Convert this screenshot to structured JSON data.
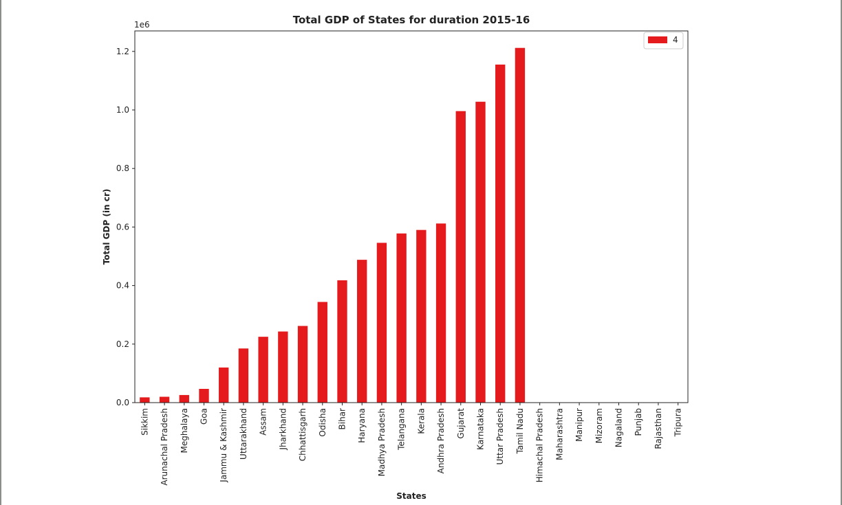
{
  "chart_data": {
    "type": "bar",
    "title": "Total GDP of States for duration 2015-16",
    "xlabel": "States",
    "ylabel": "Total GDP (in cr)",
    "y_scale_note": "1e6",
    "ylim": [
      0,
      1270000
    ],
    "yticks": [
      0,
      200000,
      400000,
      600000,
      800000,
      1000000,
      1200000
    ],
    "ytick_labels": [
      "0.0",
      "0.2",
      "0.4",
      "0.6",
      "0.8",
      "1.0",
      "1.2"
    ],
    "legend": {
      "placement": "top-right",
      "entries": [
        "4"
      ]
    },
    "grid": false,
    "colors": {
      "bar": "#e41a1c",
      "axis": "#222222"
    },
    "categories": [
      "Sikkim",
      "Arunachal Pradesh",
      "Meghalaya",
      "Goa",
      "Jammu & Kashmir",
      "Uttarakhand",
      "Assam",
      "Jharkhand",
      "Chhattisgarh",
      "Odisha",
      "Bihar",
      "Haryana",
      "Madhya Pradesh",
      "Telangana",
      "Kerala",
      "Andhra Pradesh",
      "Gujarat",
      "Karnataka",
      "Uttar Pradesh",
      "Tamil Nadu",
      "Himachal Pradesh",
      "Maharashtra",
      "Manipur",
      "Mizoram",
      "Nagaland",
      "Punjab",
      "Rajasthan",
      "Tripura"
    ],
    "series": [
      {
        "name": "4",
        "values": [
          18000,
          20000,
          26000,
          47000,
          120000,
          185000,
          225000,
          243000,
          262000,
          344000,
          418000,
          488000,
          546000,
          578000,
          590000,
          612000,
          996000,
          1028000,
          1155000,
          1212000,
          0,
          0,
          0,
          0,
          0,
          0,
          0,
          0
        ]
      }
    ]
  }
}
